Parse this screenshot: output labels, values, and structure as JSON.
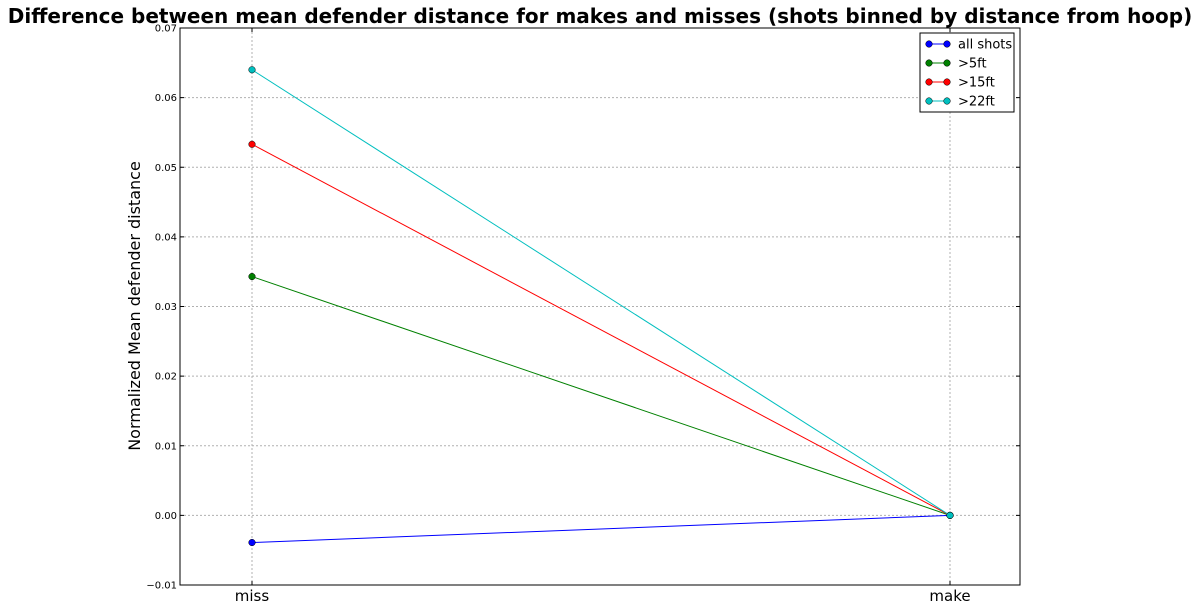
{
  "chart_data": {
    "type": "line",
    "title": "Difference between mean defender distance for makes and misses (shots binned by distance from hoop)",
    "xlabel": "",
    "ylabel": "Normalized Mean defender distance",
    "categories": [
      "miss",
      "make"
    ],
    "ylim": [
      -0.01,
      0.07
    ],
    "yticks": [
      "−0.01",
      "0.00",
      "0.01",
      "0.02",
      "0.03",
      "0.04",
      "0.05",
      "0.06",
      "0.07"
    ],
    "ytick_values": [
      -0.01,
      0.0,
      0.01,
      0.02,
      0.03,
      0.04,
      0.05,
      0.06,
      0.07
    ],
    "grid": true,
    "legend_position": "top-right",
    "series": [
      {
        "name": "all shots",
        "color": "#0000ff",
        "values": [
          -0.0039,
          0.0
        ]
      },
      {
        "name": ">5ft",
        "color": "#008000",
        "values": [
          0.0343,
          0.0
        ]
      },
      {
        "name": ">15ft",
        "color": "#ff0000",
        "values": [
          0.0533,
          0.0
        ]
      },
      {
        "name": ">22ft",
        "color": "#00bfbf",
        "values": [
          0.064,
          0.0
        ]
      }
    ]
  }
}
